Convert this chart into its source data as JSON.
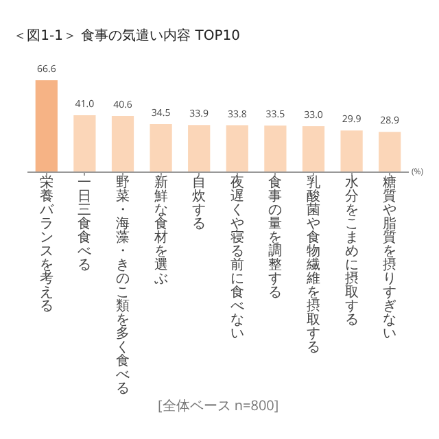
{
  "chart_data": {
    "type": "bar",
    "title": "＜図1-1＞ 食事の気遣い内容 TOP10",
    "categories": [
      "栄養バランスを考える",
      "一日三食食べる",
      "野菜・海藻・きのこ類を多く食べる",
      "新鮮な食材を選ぶ",
      "自炊する",
      "夜遅くや寝る前に食べない",
      "食事の量を調整する",
      "乳酸菌や食物繊維を摂取する",
      "水分をこまめに摂取する",
      "糖質や脂質を摂りすぎない"
    ],
    "values": [
      66.6,
      41.0,
      40.6,
      34.5,
      33.9,
      33.8,
      33.5,
      33.0,
      29.9,
      28.9
    ],
    "value_labels": [
      "66.6",
      "41.0",
      "40.6",
      "34.5",
      "33.9",
      "33.8",
      "33.5",
      "33.0",
      "29.9",
      "28.9"
    ],
    "colors": [
      "#f6b385",
      "#fbd6b8",
      "#fbd6b8",
      "#fbd6b8",
      "#fbd6b8",
      "#fbd6b8",
      "#fbd6b8",
      "#fbd6b8",
      "#fbd6b8",
      "#fbd6b8"
    ],
    "ylabel": "(%)",
    "annotations": [
      "[全体ベース n=800]"
    ],
    "grid": false,
    "legend": false
  }
}
